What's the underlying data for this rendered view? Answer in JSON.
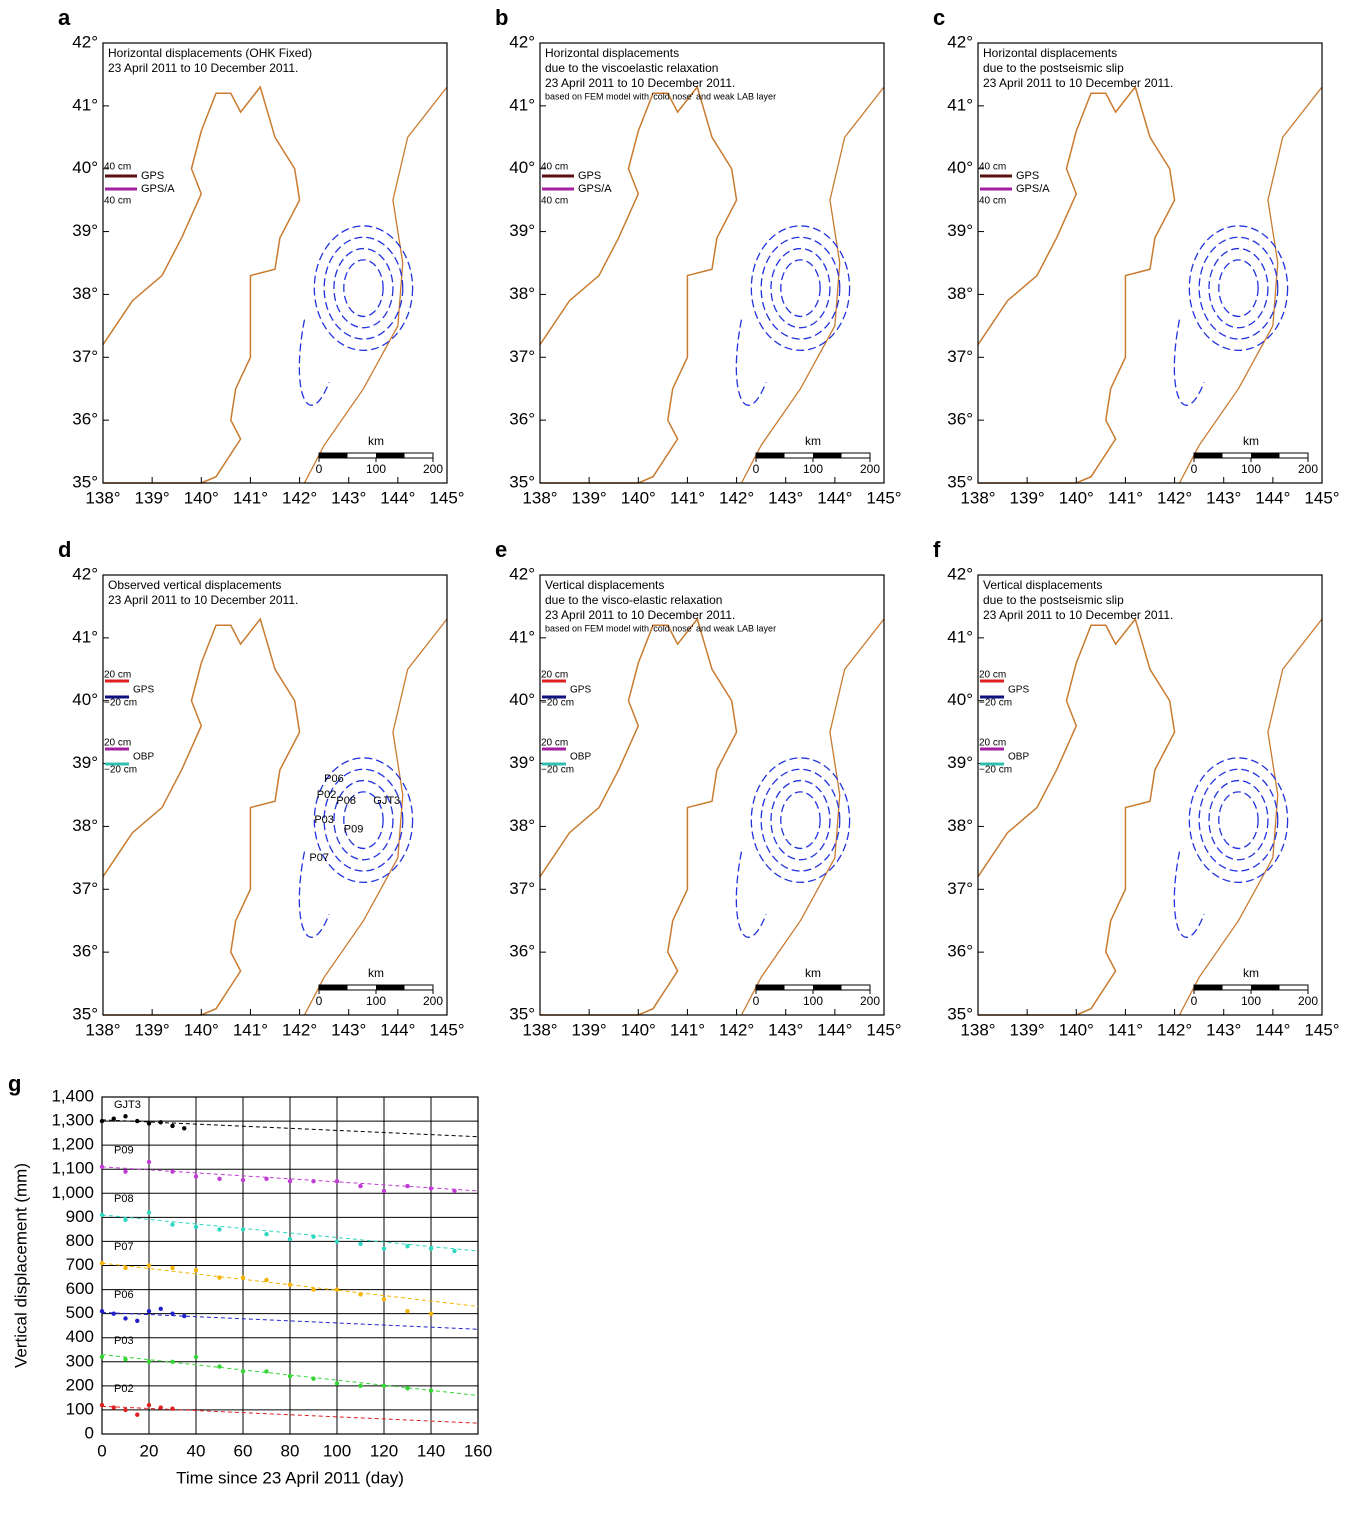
{
  "chart_data": [
    {
      "type": "map",
      "panel": "a",
      "annotation": [
        "Horizontal displacements (OHK Fixed)",
        "23 April 2011 to 10 December 2011."
      ],
      "legend_texts": [
        "40 cm",
        "GPS",
        "GPS/A",
        "40 cm"
      ],
      "xlim": [
        138,
        145
      ],
      "ylim": [
        35,
        42
      ],
      "xticks": [
        {
          "value": 138,
          "label": "138°"
        },
        {
          "value": 139,
          "label": "139°"
        },
        {
          "value": 140,
          "label": "140°"
        },
        {
          "value": 141,
          "label": "141°"
        },
        {
          "value": 142,
          "label": "142°"
        },
        {
          "value": 143,
          "label": "143°"
        },
        {
          "value": 144,
          "label": "144°"
        },
        {
          "value": 145,
          "label": "145°"
        }
      ],
      "yticks": [
        {
          "value": 35,
          "label": "35°"
        },
        {
          "value": 36,
          "label": "36°"
        },
        {
          "value": 37,
          "label": "37°"
        },
        {
          "value": 38,
          "label": "38°"
        },
        {
          "value": 39,
          "label": "39°"
        },
        {
          "value": 40,
          "label": "40°"
        },
        {
          "value": 41,
          "label": "41°"
        },
        {
          "value": 42,
          "label": "42°"
        }
      ],
      "scale_label": "km",
      "scale_ticks": [
        0,
        100,
        200
      ]
    },
    {
      "type": "map",
      "panel": "b",
      "annotation": [
        "Horizontal displacements",
        "due to the viscoelastic relaxation",
        "23 April 2011 to 10 December 2011."
      ],
      "note": "based on FEM model with 'cold nose' and weak LAB layer",
      "legend_texts": [
        "40 cm",
        "GPS",
        "GPS/A",
        "40 cm"
      ],
      "xlim": [
        138,
        145
      ],
      "ylim": [
        35,
        42
      ],
      "xticks": [
        {
          "value": 138,
          "label": "138°"
        },
        {
          "value": 139,
          "label": "139°"
        },
        {
          "value": 140,
          "label": "140°"
        },
        {
          "value": 141,
          "label": "141°"
        },
        {
          "value": 142,
          "label": "142°"
        },
        {
          "value": 143,
          "label": "143°"
        },
        {
          "value": 144,
          "label": "144°"
        },
        {
          "value": 145,
          "label": "145°"
        }
      ],
      "yticks": [
        {
          "value": 35,
          "label": "35°"
        },
        {
          "value": 36,
          "label": "36°"
        },
        {
          "value": 37,
          "label": "37°"
        },
        {
          "value": 38,
          "label": "38°"
        },
        {
          "value": 39,
          "label": "39°"
        },
        {
          "value": 40,
          "label": "40°"
        },
        {
          "value": 41,
          "label": "41°"
        },
        {
          "value": 42,
          "label": "42°"
        }
      ],
      "scale_label": "km",
      "scale_ticks": [
        0,
        100,
        200
      ]
    },
    {
      "type": "map",
      "panel": "c",
      "annotation": [
        "Horizontal displacements",
        "due to the postseismic slip",
        "23 April 2011 to 10 December 2011."
      ],
      "legend_texts": [
        "40 cm",
        "GPS",
        "GPS/A",
        "40 cm"
      ],
      "xlim": [
        138,
        145
      ],
      "ylim": [
        35,
        42
      ],
      "xticks": [
        {
          "value": 138,
          "label": "138°"
        },
        {
          "value": 139,
          "label": "139°"
        },
        {
          "value": 140,
          "label": "140°"
        },
        {
          "value": 141,
          "label": "141°"
        },
        {
          "value": 142,
          "label": "142°"
        },
        {
          "value": 143,
          "label": "143°"
        },
        {
          "value": 144,
          "label": "144°"
        },
        {
          "value": 145,
          "label": "145°"
        }
      ],
      "yticks": [
        {
          "value": 35,
          "label": "35°"
        },
        {
          "value": 36,
          "label": "36°"
        },
        {
          "value": 37,
          "label": "37°"
        },
        {
          "value": 38,
          "label": "38°"
        },
        {
          "value": 39,
          "label": "39°"
        },
        {
          "value": 40,
          "label": "40°"
        },
        {
          "value": 41,
          "label": "41°"
        },
        {
          "value": 42,
          "label": "42°"
        }
      ],
      "scale_label": "km",
      "scale_ticks": [
        0,
        100,
        200
      ]
    },
    {
      "type": "map",
      "panel": "d",
      "annotation": [
        "Observed vertical displacements",
        "23 April 2011 to 10 December 2011."
      ],
      "legend_texts": [
        "20 cm",
        "GPS",
        "−20 cm",
        "20 cm",
        "OBP",
        "−20 cm"
      ],
      "stations": [
        "P02",
        "P06",
        "P08",
        "GJT3",
        "P03",
        "P09",
        "P07"
      ],
      "xlim": [
        138,
        145
      ],
      "ylim": [
        35,
        42
      ],
      "xticks": [
        {
          "value": 138,
          "label": "138°"
        },
        {
          "value": 139,
          "label": "139°"
        },
        {
          "value": 140,
          "label": "140°"
        },
        {
          "value": 141,
          "label": "141°"
        },
        {
          "value": 142,
          "label": "142°"
        },
        {
          "value": 143,
          "label": "143°"
        },
        {
          "value": 144,
          "label": "144°"
        },
        {
          "value": 145,
          "label": "145°"
        }
      ],
      "yticks": [
        {
          "value": 35,
          "label": "35°"
        },
        {
          "value": 36,
          "label": "36°"
        },
        {
          "value": 37,
          "label": "37°"
        },
        {
          "value": 38,
          "label": "38°"
        },
        {
          "value": 39,
          "label": "39°"
        },
        {
          "value": 40,
          "label": "40°"
        },
        {
          "value": 41,
          "label": "41°"
        },
        {
          "value": 42,
          "label": "42°"
        }
      ],
      "scale_label": "km",
      "scale_ticks": [
        0,
        100,
        200
      ]
    },
    {
      "type": "map",
      "panel": "e",
      "annotation": [
        "Vertical displacements",
        "due to the visco-elastic relaxation",
        "23 April 2011 to 10 December 2011."
      ],
      "note": "based on FEM model with 'cold nose' and weak LAB layer",
      "legend_texts": [
        "20 cm",
        "GPS",
        "−20 cm",
        "20 cm",
        "OBP",
        "−20 cm"
      ],
      "xlim": [
        138,
        145
      ],
      "ylim": [
        35,
        42
      ],
      "xticks": [
        {
          "value": 138,
          "label": "138°"
        },
        {
          "value": 139,
          "label": "139°"
        },
        {
          "value": 140,
          "label": "140°"
        },
        {
          "value": 141,
          "label": "141°"
        },
        {
          "value": 142,
          "label": "142°"
        },
        {
          "value": 143,
          "label": "143°"
        },
        {
          "value": 144,
          "label": "144°"
        },
        {
          "value": 145,
          "label": "145°"
        }
      ],
      "yticks": [
        {
          "value": 35,
          "label": "35°"
        },
        {
          "value": 36,
          "label": "36°"
        },
        {
          "value": 37,
          "label": "37°"
        },
        {
          "value": 38,
          "label": "38°"
        },
        {
          "value": 39,
          "label": "39°"
        },
        {
          "value": 40,
          "label": "40°"
        },
        {
          "value": 41,
          "label": "41°"
        },
        {
          "value": 42,
          "label": "42°"
        }
      ],
      "scale_label": "km",
      "scale_ticks": [
        0,
        100,
        200
      ]
    },
    {
      "type": "map",
      "panel": "f",
      "annotation": [
        "Vertical displacements",
        "due to the postseismic slip",
        "23 April 2011 to 10 December 2011."
      ],
      "legend_texts": [
        "20 cm",
        "GPS",
        "−20 cm",
        "20 cm",
        "OBP",
        "−20 cm"
      ],
      "xlim": [
        138,
        145
      ],
      "ylim": [
        35,
        42
      ],
      "xticks": [
        {
          "value": 138,
          "label": "138°"
        },
        {
          "value": 139,
          "label": "139°"
        },
        {
          "value": 140,
          "label": "140°"
        },
        {
          "value": 141,
          "label": "141°"
        },
        {
          "value": 142,
          "label": "142°"
        },
        {
          "value": 143,
          "label": "143°"
        },
        {
          "value": 144,
          "label": "144°"
        },
        {
          "value": 145,
          "label": "145°"
        }
      ],
      "yticks": [
        {
          "value": 35,
          "label": "35°"
        },
        {
          "value": 36,
          "label": "36°"
        },
        {
          "value": 37,
          "label": "37°"
        },
        {
          "value": 38,
          "label": "38°"
        },
        {
          "value": 39,
          "label": "39°"
        },
        {
          "value": 40,
          "label": "40°"
        },
        {
          "value": 41,
          "label": "41°"
        },
        {
          "value": 42,
          "label": "42°"
        }
      ],
      "scale_label": "km",
      "scale_ticks": [
        0,
        100,
        200
      ]
    },
    {
      "type": "scatter",
      "panel": "g",
      "x_label": "Time since 23 April 2011 (day)",
      "y_label": "Vertical displacement (mm)",
      "grid": true,
      "xlim": [
        0,
        160
      ],
      "ylim": [
        0,
        1400
      ],
      "xticks": [
        0,
        20,
        40,
        60,
        80,
        100,
        120,
        140,
        160
      ],
      "yticks": [
        0,
        100,
        200,
        300,
        400,
        500,
        600,
        700,
        800,
        900,
        {
          "value": 1000,
          "label": "1,000"
        },
        {
          "value": 1100,
          "label": "1,100"
        },
        {
          "value": 1200,
          "label": "1,200"
        },
        {
          "value": 1300,
          "label": "1,300"
        },
        {
          "value": 1400,
          "label": "1,400"
        }
      ],
      "series": [
        {
          "name": "GJT3",
          "color": "#000000",
          "x": [
            0,
            5,
            10,
            15,
            20,
            25,
            30,
            35
          ],
          "values": [
            1300,
            1310,
            1320,
            1300,
            1290,
            1295,
            1280,
            1270
          ],
          "trend_values": [
            1305,
            1235
          ]
        },
        {
          "name": "P09",
          "color": "#c23bd6",
          "x": [
            0,
            10,
            20,
            30,
            40,
            50,
            60,
            70,
            80,
            90,
            100,
            110,
            120,
            130,
            140,
            150
          ],
          "values": [
            1110,
            1090,
            1130,
            1090,
            1070,
            1060,
            1055,
            1060,
            1050,
            1050,
            1050,
            1030,
            1010,
            1030,
            1020,
            1010
          ],
          "trend_values": [
            1110,
            1010
          ]
        },
        {
          "name": "P08",
          "color": "#2fd6c0",
          "x": [
            0,
            10,
            20,
            30,
            40,
            50,
            60,
            70,
            80,
            90,
            100,
            110,
            120,
            130,
            140,
            150
          ],
          "values": [
            910,
            890,
            920,
            870,
            860,
            850,
            850,
            830,
            810,
            820,
            800,
            790,
            770,
            780,
            770,
            760
          ],
          "trend_values": [
            910,
            760
          ]
        },
        {
          "name": "P07",
          "color": "#f5b400",
          "x": [
            0,
            10,
            20,
            30,
            40,
            50,
            60,
            70,
            80,
            90,
            100,
            110,
            120,
            130,
            140
          ],
          "values": [
            710,
            690,
            700,
            690,
            680,
            650,
            650,
            640,
            620,
            600,
            600,
            580,
            560,
            510,
            500
          ],
          "trend_values": [
            710,
            530
          ]
        },
        {
          "name": "P06",
          "color": "#2222cc",
          "x": [
            0,
            5,
            10,
            15,
            20,
            25,
            30,
            35
          ],
          "values": [
            510,
            500,
            480,
            470,
            510,
            520,
            500,
            490
          ],
          "trend_values": [
            505,
            435
          ]
        },
        {
          "name": "P03",
          "color": "#33d633",
          "x": [
            0,
            10,
            20,
            30,
            40,
            50,
            60,
            70,
            80,
            90,
            100,
            110,
            120,
            130,
            140
          ],
          "values": [
            320,
            310,
            300,
            300,
            320,
            280,
            260,
            260,
            240,
            230,
            210,
            200,
            200,
            190,
            180
          ],
          "trend_values": [
            330,
            160
          ]
        },
        {
          "name": "P02",
          "color": "#e02020",
          "x": [
            0,
            5,
            10,
            15,
            20,
            25,
            30
          ],
          "values": [
            120,
            110,
            100,
            80,
            120,
            110,
            105
          ],
          "trend_values": [
            115,
            45
          ]
        }
      ]
    }
  ]
}
